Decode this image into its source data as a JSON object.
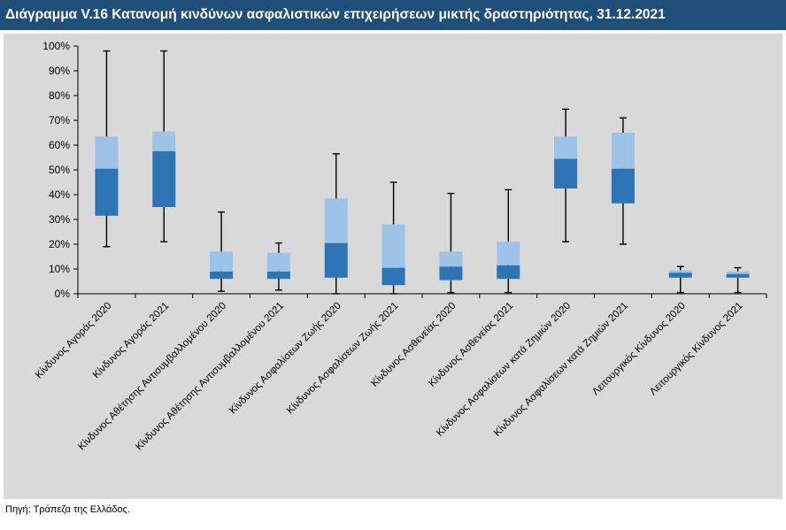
{
  "title": "Διάγραμμα V.16 Κατανομή κινδύνων ασφαλιστικών επιχειρήσεων μικτής δραστηριότητας, 31.12.2021",
  "source": "Πηγή: Τράπεζα της Ελλάδος.",
  "colors": {
    "title_bg": "#1f4e79",
    "plot_bg": "#d9d9d9",
    "lower_box": "#2e75b6",
    "upper_box": "#9dc3e6",
    "whisker": "#000000"
  },
  "chart_data": {
    "type": "boxplot",
    "ylim": [
      0,
      100
    ],
    "yticks": [
      "0%",
      "10%",
      "20%",
      "30%",
      "40%",
      "50%",
      "60%",
      "70%",
      "80%",
      "90%",
      "100%"
    ],
    "categories": [
      "Κίνδυνος Αγοράς  2020",
      "Κίνδυνος Αγοράς 2021",
      "Κίνδυνος Αθέτησης Αντισυμβαλλομένου 2020",
      "Κίνδυνος Αθέτησης Αντισυμβαλλομένου 2021",
      "Κίνδυνος Ασφαλίσεων Ζωής 2020",
      "Κίνδυνος Ασφαλίσεων Ζωής 2021",
      "Κίνδυνος Ασθενείας 2020",
      "Κίνδυνος Ασθενείας 2021",
      "Κίνδυνος Ασφαλίσεων κατά Ζημιών 2020",
      "Κίνδυνος Ασφαλίσεων κατά Ζημιών 2021",
      "Λειτουργικός Κίνδυνος 2020",
      "Λειτουργικός Κίνδυνος 2021"
    ],
    "boxes": [
      {
        "min": 19,
        "q1": 31.5,
        "median": 50.5,
        "q3": 63.5,
        "max": 98
      },
      {
        "min": 21,
        "q1": 35,
        "median": 57.5,
        "q3": 65.5,
        "max": 98
      },
      {
        "min": 1,
        "q1": 6,
        "median": 9,
        "q3": 17,
        "max": 33
      },
      {
        "min": 1.5,
        "q1": 6,
        "median": 9,
        "q3": 16.5,
        "max": 20.5
      },
      {
        "min": 0,
        "q1": 6.5,
        "median": 20.5,
        "q3": 38.5,
        "max": 56.5
      },
      {
        "min": 0,
        "q1": 3.5,
        "median": 10.5,
        "q3": 28,
        "max": 45
      },
      {
        "min": 0.5,
        "q1": 5.5,
        "median": 11,
        "q3": 17,
        "max": 40.5
      },
      {
        "min": 0.5,
        "q1": 6,
        "median": 11.5,
        "q3": 21,
        "max": 42
      },
      {
        "min": 21,
        "q1": 42.5,
        "median": 54.5,
        "q3": 63.5,
        "max": 74.5
      },
      {
        "min": 20,
        "q1": 36.5,
        "median": 50.5,
        "q3": 65,
        "max": 71
      },
      {
        "min": 0.5,
        "q1": 6.5,
        "median": 8.5,
        "q3": 9.5,
        "max": 11
      },
      {
        "min": 0.5,
        "q1": 6.5,
        "median": 8,
        "q3": 9,
        "max": 10.5
      }
    ]
  }
}
